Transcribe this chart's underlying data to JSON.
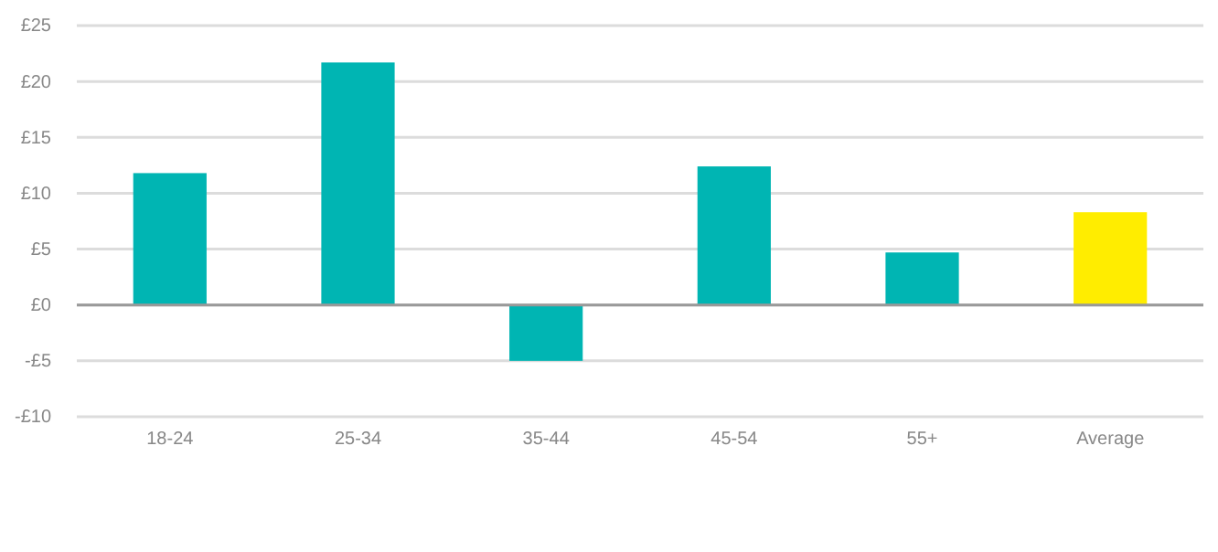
{
  "chart_data": {
    "type": "bar",
    "categories": [
      "18-24",
      "25-34",
      "35-44",
      "45-54",
      "55+",
      "Average"
    ],
    "values": [
      11.8,
      21.7,
      -5,
      12.4,
      4.7,
      8.3
    ],
    "colors": [
      "#00b5b3",
      "#00b5b3",
      "#00b5b3",
      "#00b5b3",
      "#00b5b3",
      "#ffed00"
    ],
    "ylim": [
      -10,
      25
    ],
    "yticks": [
      {
        "value": -10,
        "label": "-£10"
      },
      {
        "value": -5,
        "label": "-£5"
      },
      {
        "value": 0,
        "label": "£0"
      },
      {
        "value": 5,
        "label": "£5"
      },
      {
        "value": 10,
        "label": "£10"
      },
      {
        "value": 15,
        "label": "£15"
      },
      {
        "value": 20,
        "label": "£20"
      },
      {
        "value": 25,
        "label": "£25"
      }
    ],
    "grid": "y"
  }
}
